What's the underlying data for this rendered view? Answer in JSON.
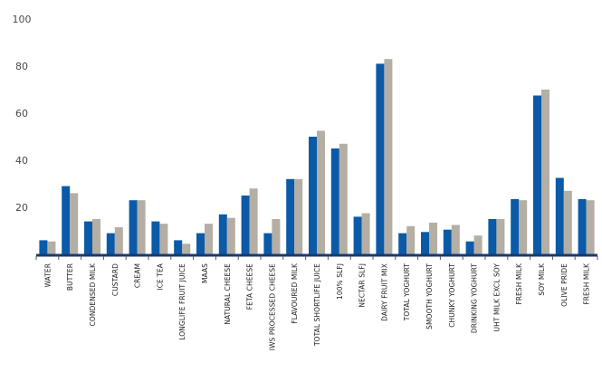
{
  "chart_data": {
    "type": "bar",
    "title": "",
    "xlabel": "",
    "ylabel": "",
    "ylim": [
      0,
      100
    ],
    "yticks": [
      20,
      40,
      60,
      80,
      100
    ],
    "grid": false,
    "legend": "none",
    "categories": [
      "WATER",
      "BUTTER",
      "CONDENSED MILK",
      "CUSTARD",
      "CREAM",
      "ICE TEA",
      "LONGLIFE FRUIT JUICE",
      "MAAS",
      "NATURAL CHEESE",
      "FETA CHEESE",
      "IWS PROCESSED CHEESE",
      "FLAVOURED MILK",
      "TOTAL SHORTLIFE JUICE",
      "100% SLFJ",
      "NECTAR SLFJ",
      "DAIRY FRUIT MIX",
      "TOTAL YOGHURT",
      "SMOOTH YOGHURT",
      "CHUNKY YOGHURT",
      "DRINKING YOGHURT",
      "UHT MILK EXCL SOY",
      "FRESH MILK",
      "SOY MILK",
      "OLIVE PRIDE",
      "FRESH MILK"
    ],
    "series": [
      {
        "color": "#0a5aa8",
        "values": [
          6,
          29,
          14,
          9,
          23,
          14,
          6,
          9,
          17,
          25,
          9,
          32,
          50,
          45,
          16,
          81,
          9,
          9.5,
          10.5,
          5.5,
          15,
          23.5,
          67.5,
          32.5,
          23.5
        ]
      },
      {
        "color": "#b4aea4",
        "values": [
          5.5,
          26,
          15,
          11.5,
          23,
          13,
          4.5,
          13,
          15.5,
          28,
          15,
          32,
          52.5,
          47,
          17.5,
          83,
          12,
          13.5,
          12.5,
          8,
          15,
          23,
          70,
          27,
          23
        ]
      }
    ],
    "axis_color": "#1a3a6e"
  }
}
